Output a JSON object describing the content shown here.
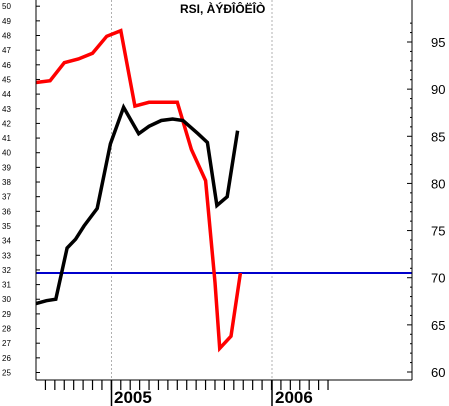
{
  "chart_data": {
    "type": "line",
    "title": "RSI, ÀÝÐÎÔËÎÒ",
    "x_labels": [
      "2005",
      "2006"
    ],
    "months": [
      1,
      2,
      3,
      4,
      5,
      6,
      7,
      8,
      9,
      10,
      11,
      12,
      13,
      14,
      15,
      16,
      17,
      18,
      19,
      20,
      21,
      22,
      23,
      24,
      25,
      26,
      27,
      28,
      29,
      30,
      31
    ],
    "left_axis": {
      "ylim": [
        25,
        50
      ],
      "ticks": [
        25,
        26,
        27,
        28,
        29,
        30,
        31,
        32,
        33,
        34,
        35,
        36,
        37,
        38,
        39,
        40,
        41,
        42,
        43,
        44,
        45,
        46,
        47,
        48,
        49,
        50
      ]
    },
    "right_axis": {
      "ylim": [
        60,
        98
      ],
      "ticks": [
        60,
        65,
        70,
        75,
        80,
        85,
        90,
        95
      ]
    },
    "series": [
      {
        "axis": "right",
        "color": "#ff0000",
        "x": [
          0,
          1.5,
          3,
          4.5,
          6,
          7.5,
          9,
          10.5,
          12,
          13.5,
          15,
          16.5,
          18,
          19,
          19.5,
          20.7,
          21.7
        ],
        "values": [
          90.7,
          90.9,
          92.8,
          93.2,
          93.8,
          95.6,
          96.2,
          88.2,
          88.6,
          88.6,
          88.6,
          83.6,
          80.3,
          69.5,
          62.5,
          63.8,
          70.5
        ]
      },
      {
        "axis": "left",
        "color": "#000000",
        "x": [
          0,
          1.1,
          2.1,
          3.3,
          4.2,
          5.1,
          6.5,
          7.9,
          9.3,
          10.9,
          12.0,
          13.3,
          14.5,
          15.6,
          17.2,
          18.2,
          19.2,
          20.3,
          21.4
        ],
        "values": [
          29.7,
          29.9,
          30.0,
          33.5,
          34.1,
          35.0,
          36.2,
          40.6,
          43.1,
          41.3,
          41.8,
          42.2,
          42.3,
          42.2,
          41.3,
          40.7,
          36.4,
          37.0,
          41.5
        ]
      },
      {
        "axis": "right",
        "color": "#0000cc",
        "type": "hline",
        "value": 70.5
      }
    ]
  }
}
